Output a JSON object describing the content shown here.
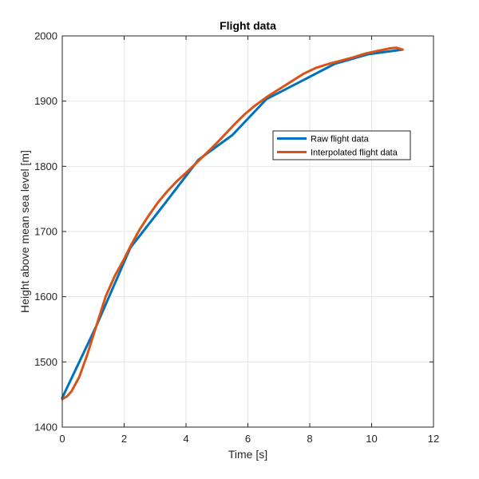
{
  "chart_data": {
    "type": "line",
    "title": "Flight data",
    "xlabel": "Time [s]",
    "ylabel": "Height above mean sea level [m]",
    "xlim": [
      0,
      12
    ],
    "ylim": [
      1400,
      2000
    ],
    "xticks": [
      0,
      2,
      4,
      6,
      8,
      10,
      12
    ],
    "yticks": [
      1400,
      1500,
      1600,
      1700,
      1800,
      1900,
      2000
    ],
    "grid": true,
    "legend_position": "center-right",
    "series": [
      {
        "name": "Raw flight data",
        "color": "#0072bd",
        "points": [
          [
            0,
            1445
          ],
          [
            1.1,
            1555
          ],
          [
            2.2,
            1675
          ],
          [
            3.3,
            1742
          ],
          [
            4.4,
            1810
          ],
          [
            5.5,
            1848
          ],
          [
            6.6,
            1903
          ],
          [
            7.7,
            1930
          ],
          [
            8.8,
            1957
          ],
          [
            9.9,
            1972
          ],
          [
            11.0,
            1979
          ]
        ]
      },
      {
        "name": "Interpolated flight data",
        "color": "#d95319",
        "points": [
          [
            0,
            1443
          ],
          [
            0.15,
            1447
          ],
          [
            0.3,
            1455
          ],
          [
            0.55,
            1477
          ],
          [
            0.8,
            1510
          ],
          [
            1.1,
            1555
          ],
          [
            1.4,
            1600
          ],
          [
            1.7,
            1632
          ],
          [
            2.0,
            1658
          ],
          [
            2.2,
            1677
          ],
          [
            2.5,
            1703
          ],
          [
            2.8,
            1725
          ],
          [
            3.1,
            1745
          ],
          [
            3.4,
            1762
          ],
          [
            3.7,
            1777
          ],
          [
            4.0,
            1790
          ],
          [
            4.2,
            1799
          ],
          [
            4.4,
            1808
          ],
          [
            4.7,
            1822
          ],
          [
            5.0,
            1836
          ],
          [
            5.3,
            1851
          ],
          [
            5.6,
            1866
          ],
          [
            5.9,
            1880
          ],
          [
            6.2,
            1892
          ],
          [
            6.6,
            1906
          ],
          [
            7.0,
            1918
          ],
          [
            7.4,
            1930
          ],
          [
            7.8,
            1942
          ],
          [
            8.2,
            1951
          ],
          [
            8.6,
            1957
          ],
          [
            9.0,
            1962
          ],
          [
            9.4,
            1967
          ],
          [
            9.8,
            1973
          ],
          [
            10.2,
            1977
          ],
          [
            10.6,
            1981
          ],
          [
            10.8,
            1982
          ],
          [
            11.0,
            1979
          ]
        ]
      }
    ]
  }
}
